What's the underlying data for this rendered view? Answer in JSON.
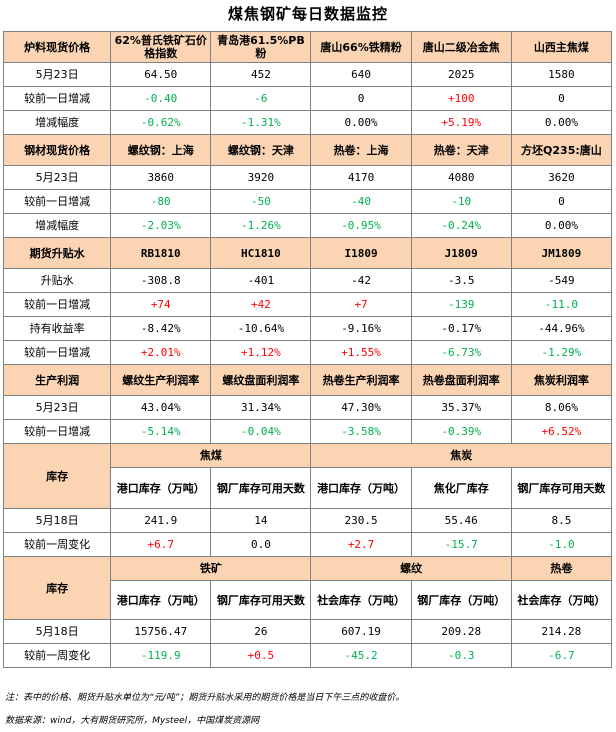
{
  "title": "煤焦钢矿每日数据监控",
  "colors": {
    "section_bg": "#fbd4b4",
    "positive": "#ff0000",
    "negative": "#00b050",
    "border": "#808080"
  },
  "s1": {
    "head": [
      "炉料现货价格",
      "62%普氏铁矿石价格指数",
      "青岛港61.5%PB粉",
      "唐山66%铁精粉",
      "唐山二级冶金焦",
      "山西主焦煤"
    ],
    "rows": [
      {
        "label": "5月23日",
        "vals": [
          "64.50",
          "452",
          "640",
          "2025",
          "1580"
        ]
      },
      {
        "label": "较前一日增减",
        "vals": [
          "-0.40",
          "-6",
          "0",
          "+100",
          "0"
        ]
      },
      {
        "label": "增减幅度",
        "vals": [
          "-0.62%",
          "-1.31%",
          "0.00%",
          "+5.19%",
          "0.00%"
        ]
      }
    ]
  },
  "s2": {
    "head": [
      "钢材现货价格",
      "螺纹钢：上海",
      "螺纹钢：天津",
      "热卷：上海",
      "热卷：天津",
      "方坯Q235:唐山"
    ],
    "rows": [
      {
        "label": "5月23日",
        "vals": [
          "3860",
          "3920",
          "4170",
          "4080",
          "3620"
        ]
      },
      {
        "label": "较前一日增减",
        "vals": [
          "-80",
          "-50",
          "-40",
          "-10",
          "0"
        ]
      },
      {
        "label": "增减幅度",
        "vals": [
          "-2.03%",
          "-1.26%",
          "-0.95%",
          "-0.24%",
          "0.00%"
        ]
      }
    ]
  },
  "s3": {
    "head": [
      "期货升贴水",
      "RB1810",
      "HC1810",
      "I1809",
      "J1809",
      "JM1809"
    ],
    "rows": [
      {
        "label": "升贴水",
        "vals": [
          "-308.8",
          "-401",
          "-42",
          "-3.5",
          "-549"
        ]
      },
      {
        "label": "较前一日增减",
        "vals": [
          "+74",
          "+42",
          "+7",
          "-139",
          "-11.0"
        ]
      },
      {
        "label": "持有收益率",
        "vals": [
          "-8.42%",
          "-10.64%",
          "-9.16%",
          "-0.17%",
          "-44.96%"
        ]
      },
      {
        "label": "较前一日增减",
        "vals": [
          "+2.01%",
          "+1.12%",
          "+1.55%",
          "-6.73%",
          "-1.29%"
        ]
      }
    ]
  },
  "s4": {
    "head": [
      "生产利润",
      "螺纹生产利润率",
      "螺纹盘面利润率",
      "热卷生产利润率",
      "热卷盘面利润率",
      "焦炭利润率"
    ],
    "rows": [
      {
        "label": "5月23日",
        "vals": [
          "43.04%",
          "31.34%",
          "47.30%",
          "35.37%",
          "8.06%"
        ]
      },
      {
        "label": "较前一日增减",
        "vals": [
          "-5.14%",
          "-0.04%",
          "-3.58%",
          "-0.39%",
          "+6.52%"
        ]
      }
    ]
  },
  "s5": {
    "label": "库存",
    "group1": "焦煤",
    "group2": "焦炭",
    "sub": [
      "港口库存（万吨）",
      "钢厂库存可用天数",
      "港口库存（万吨）",
      "焦化厂库存",
      "钢厂库存可用天数"
    ],
    "rows": [
      {
        "label": "5月18日",
        "vals": [
          "241.9",
          "14",
          "230.5",
          "55.46",
          "8.5"
        ]
      },
      {
        "label": "较前一周变化",
        "vals": [
          "+6.7",
          "0.0",
          "+2.7",
          "-15.7",
          "-1.0"
        ]
      }
    ]
  },
  "s6": {
    "label": "库存",
    "group1": "铁矿",
    "group2": "螺纹",
    "group3": "热卷",
    "sub": [
      "港口库存（万吨）",
      "钢厂库存可用天数",
      "社会库存（万吨）",
      "钢厂库存（万吨）",
      "社会库存（万吨）"
    ],
    "rows": [
      {
        "label": "5月18日",
        "vals": [
          "15756.47",
          "26",
          "607.19",
          "209.28",
          "214.28"
        ]
      },
      {
        "label": "较前一周变化",
        "vals": [
          "-119.9",
          "+0.5",
          "-45.2",
          "-0.3",
          "-6.7"
        ]
      }
    ]
  },
  "notes": {
    "note1": "注：表中的价格、期货升贴水单位为“元/吨”；期货升贴水采用的期货价格是当日下午三点的收盘价。",
    "note2": "数据来源：wind，大有期货研究所，Mysteel，中国煤炭资源网"
  }
}
